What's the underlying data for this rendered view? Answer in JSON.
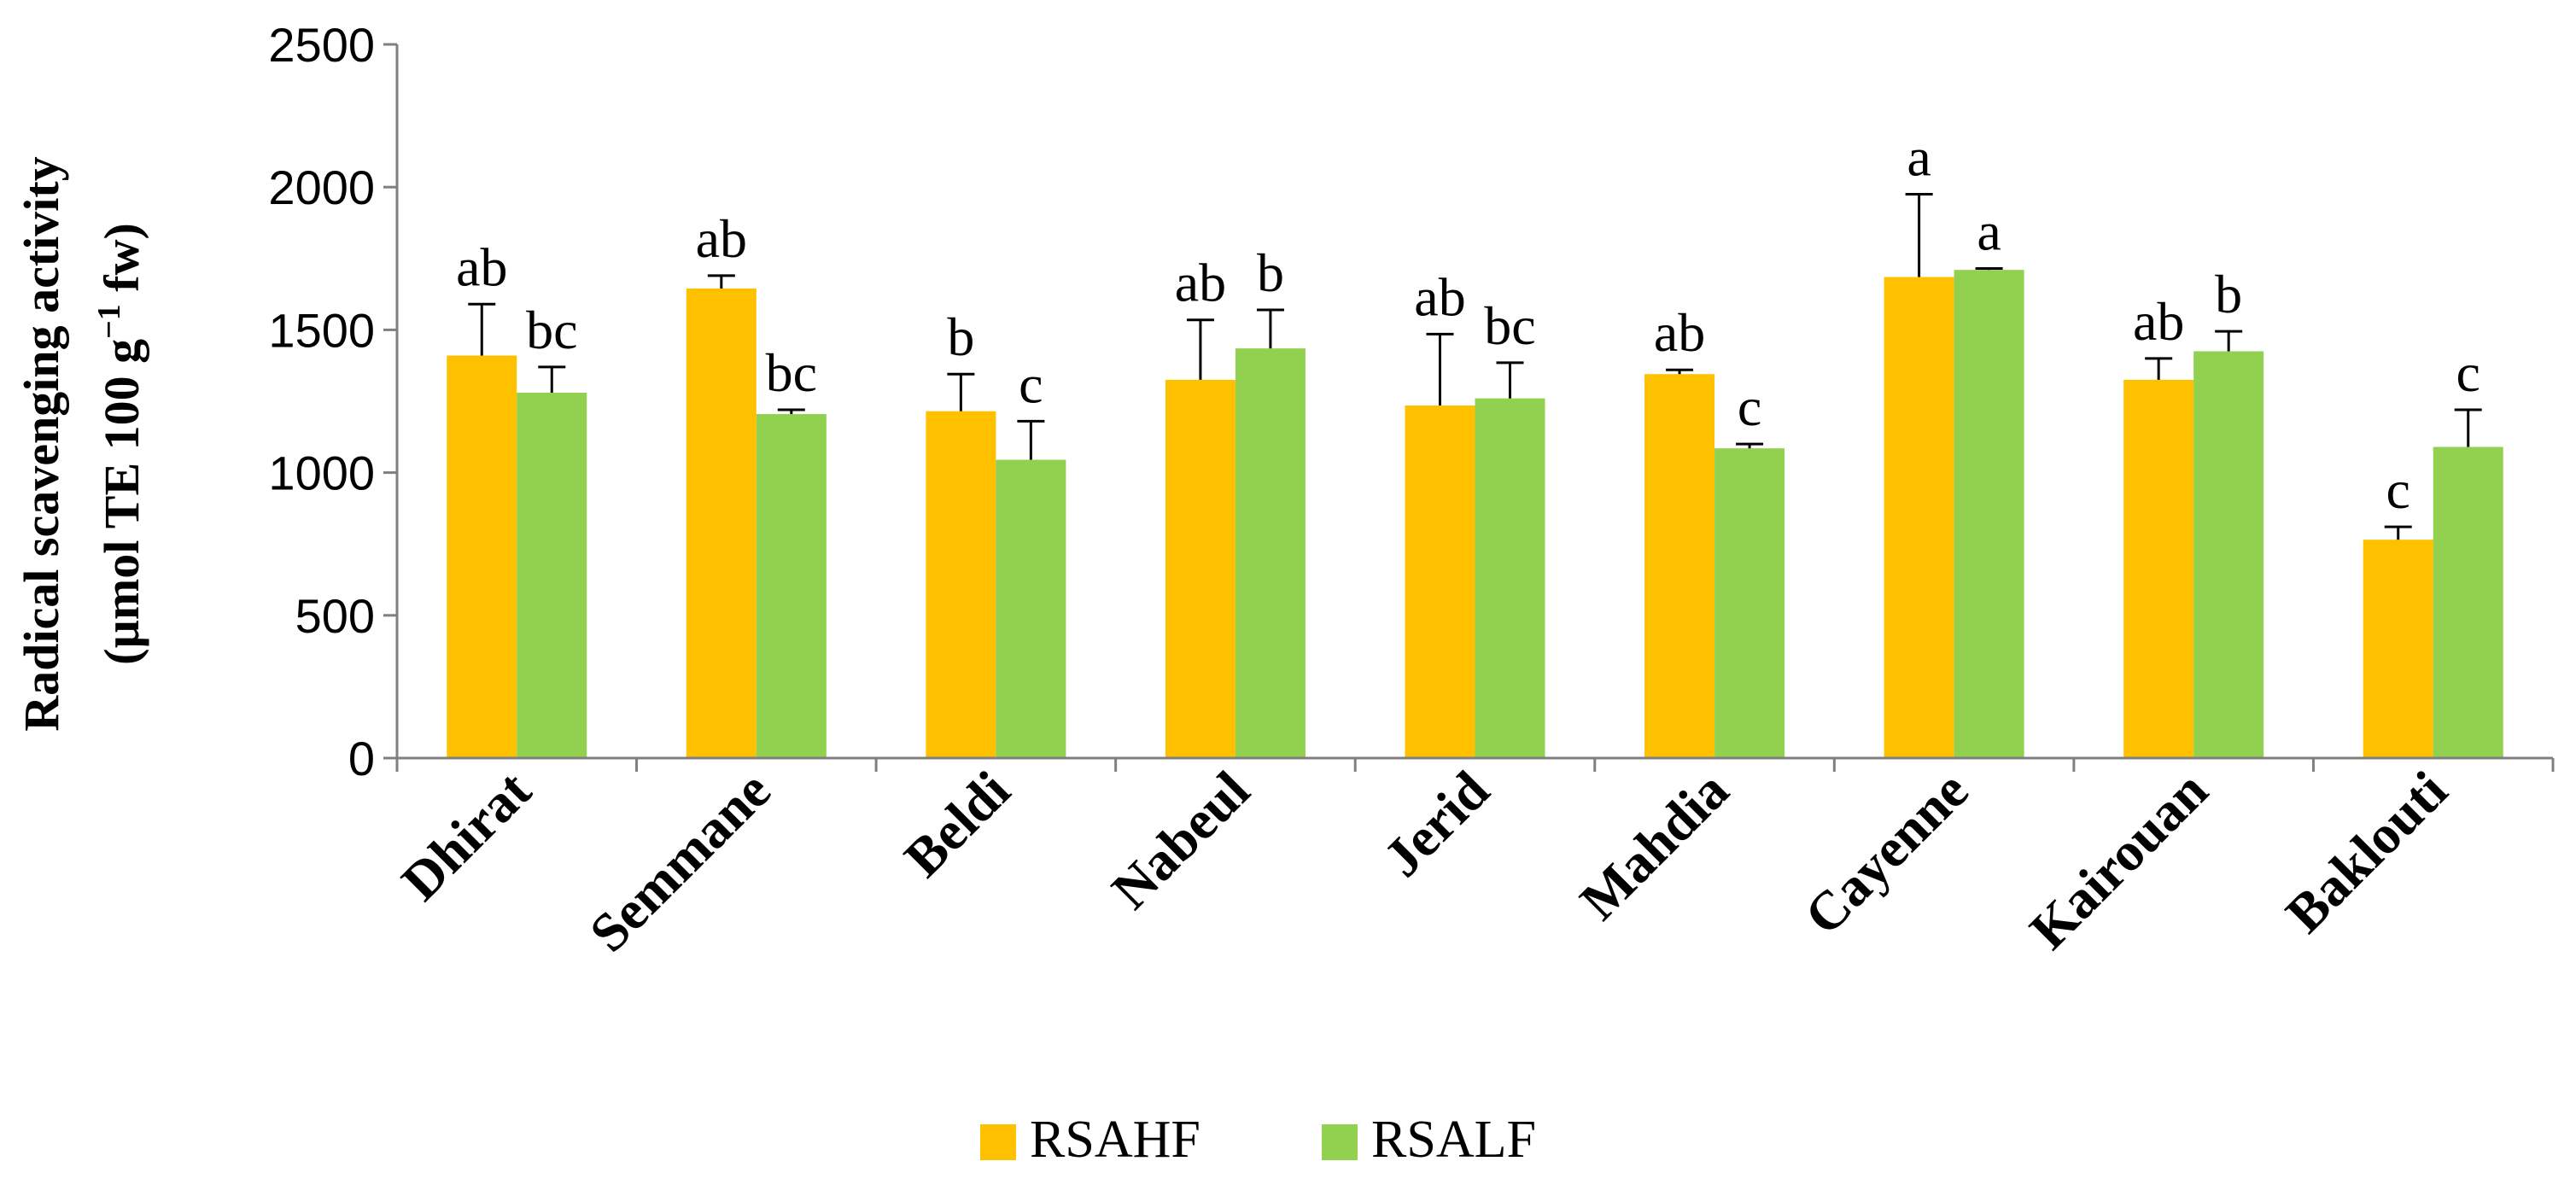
{
  "chart_data": {
    "type": "bar",
    "title": "",
    "xlabel": "",
    "ylabel_line1": "Radical scavenging activity",
    "ylabel_line2_prefix": "(µmol TE 100 g",
    "ylabel_line2_sup": "−1",
    "ylabel_line2_suffix": " fw)",
    "ylim": [
      0,
      2500
    ],
    "yticks": [
      0,
      500,
      1000,
      1500,
      2000,
      2500
    ],
    "categories": [
      "Dhirat",
      "Semmane",
      "Beldi",
      "Nabeul",
      "Jerid",
      "Mahdia",
      "Cayenne",
      "Kairouan",
      "Baklouti"
    ],
    "series": [
      {
        "name": "RSAHF",
        "color": "#FFC000",
        "values": [
          1410,
          1645,
          1215,
          1325,
          1235,
          1345,
          1685,
          1325,
          765
        ],
        "errors": [
          180,
          45,
          130,
          210,
          250,
          15,
          290,
          75,
          45
        ],
        "letters": [
          "ab",
          "ab",
          "b",
          "ab",
          "ab",
          "ab",
          "a",
          "ab",
          "c"
        ]
      },
      {
        "name": "RSALF",
        "color": "#92D050",
        "values": [
          1280,
          1205,
          1045,
          1435,
          1260,
          1085,
          1710,
          1425,
          1090
        ],
        "errors": [
          90,
          15,
          135,
          135,
          125,
          15,
          5,
          70,
          130
        ],
        "letters": [
          "bc",
          "bc",
          "c",
          "b",
          "bc",
          "c",
          "a",
          "b",
          "c"
        ]
      }
    ],
    "legend_position": "bottom"
  }
}
